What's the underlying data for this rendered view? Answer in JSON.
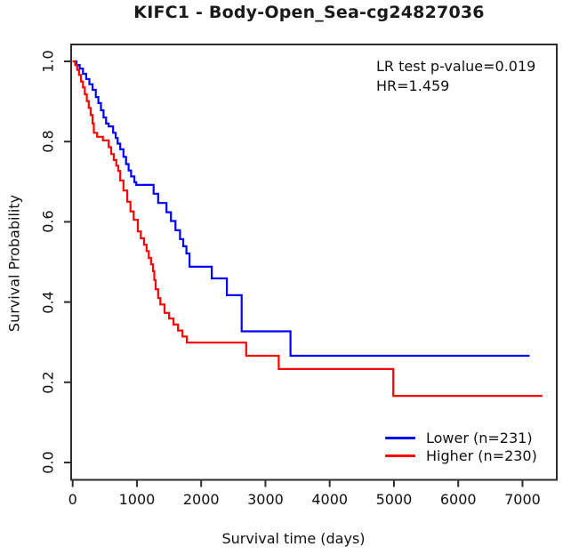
{
  "title": "KIFC1 - Body-Open_Sea-cg24827036",
  "annotation": {
    "line1": "LR test p-value=0.019",
    "line2": "HR=1.459"
  },
  "axes": {
    "x_label": "Survival time (days)",
    "y_label": "Survival Probability"
  },
  "legend": {
    "items": [
      {
        "label": "Lower (n=231)",
        "color": "#0000ff"
      },
      {
        "label": "Higher (n=230)",
        "color": "#ff0000"
      }
    ]
  },
  "colors": {
    "lower_curve": "#0000ff",
    "higher_curve": "#ff0000",
    "axis": "#2e2e2e",
    "text": "#111111"
  },
  "chart_data": {
    "type": "line",
    "subtype": "kaplan-meier-step",
    "title": "KIFC1 - Body-Open_Sea-cg24827036",
    "xlabel": "Survival time (days)",
    "ylabel": "Survival Probability",
    "xlim": [
      0,
      7300
    ],
    "ylim": [
      0.0,
      1.0
    ],
    "x_ticks": [
      0,
      1000,
      2000,
      3000,
      4000,
      5000,
      6000,
      7000
    ],
    "x_tick_labels": [
      "0",
      "1000",
      "2000",
      "3000",
      "4000",
      "5000",
      "6000",
      "7000"
    ],
    "y_ticks": [
      0.0,
      0.2,
      0.4,
      0.6,
      0.8,
      1.0
    ],
    "y_tick_labels": [
      "0.0",
      "0.2",
      "0.4",
      "0.6",
      "0.8",
      "1.0"
    ],
    "grid": false,
    "legend_position": "bottom-right",
    "annotations": [
      "LR test p-value=0.019",
      "HR=1.459"
    ],
    "series": [
      {
        "name": "Lower (n=231)",
        "n": 231,
        "color": "#0000ff",
        "points": [
          [
            0,
            1.0
          ],
          [
            60,
            0.991
          ],
          [
            110,
            0.982
          ],
          [
            160,
            0.969
          ],
          [
            210,
            0.956
          ],
          [
            260,
            0.943
          ],
          [
            310,
            0.929
          ],
          [
            360,
            0.911
          ],
          [
            400,
            0.896
          ],
          [
            440,
            0.878
          ],
          [
            480,
            0.86
          ],
          [
            520,
            0.845
          ],
          [
            560,
            0.838
          ],
          [
            630,
            0.822
          ],
          [
            670,
            0.809
          ],
          [
            700,
            0.795
          ],
          [
            740,
            0.781
          ],
          [
            790,
            0.762
          ],
          [
            830,
            0.744
          ],
          [
            870,
            0.728
          ],
          [
            910,
            0.713
          ],
          [
            960,
            0.699
          ],
          [
            990,
            0.692
          ],
          [
            1260,
            0.67
          ],
          [
            1330,
            0.647
          ],
          [
            1460,
            0.624
          ],
          [
            1530,
            0.602
          ],
          [
            1600,
            0.579
          ],
          [
            1670,
            0.557
          ],
          [
            1720,
            0.539
          ],
          [
            1770,
            0.521
          ],
          [
            1818,
            0.488
          ],
          [
            2165,
            0.459
          ],
          [
            2400,
            0.417
          ],
          [
            2630,
            0.327
          ],
          [
            3390,
            0.266
          ],
          [
            7110,
            0.266
          ]
        ]
      },
      {
        "name": "Higher (n=230)",
        "n": 230,
        "color": "#ff0000",
        "points": [
          [
            0,
            1.0
          ],
          [
            40,
            0.991
          ],
          [
            70,
            0.979
          ],
          [
            100,
            0.966
          ],
          [
            130,
            0.95
          ],
          [
            160,
            0.935
          ],
          [
            190,
            0.918
          ],
          [
            220,
            0.901
          ],
          [
            250,
            0.884
          ],
          [
            280,
            0.866
          ],
          [
            310,
            0.845
          ],
          [
            330,
            0.822
          ],
          [
            380,
            0.812
          ],
          [
            470,
            0.803
          ],
          [
            560,
            0.786
          ],
          [
            600,
            0.769
          ],
          [
            640,
            0.754
          ],
          [
            680,
            0.74
          ],
          [
            710,
            0.727
          ],
          [
            740,
            0.703
          ],
          [
            790,
            0.678
          ],
          [
            850,
            0.65
          ],
          [
            900,
            0.626
          ],
          [
            950,
            0.605
          ],
          [
            1015,
            0.576
          ],
          [
            1060,
            0.559
          ],
          [
            1110,
            0.543
          ],
          [
            1150,
            0.527
          ],
          [
            1185,
            0.51
          ],
          [
            1220,
            0.494
          ],
          [
            1250,
            0.477
          ],
          [
            1270,
            0.455
          ],
          [
            1292,
            0.432
          ],
          [
            1330,
            0.41
          ],
          [
            1365,
            0.394
          ],
          [
            1430,
            0.373
          ],
          [
            1500,
            0.359
          ],
          [
            1570,
            0.344
          ],
          [
            1640,
            0.329
          ],
          [
            1710,
            0.314
          ],
          [
            1777,
            0.299
          ],
          [
            2700,
            0.266
          ],
          [
            3207,
            0.233
          ],
          [
            4990,
            0.166
          ],
          [
            7310,
            0.166
          ]
        ]
      }
    ]
  }
}
